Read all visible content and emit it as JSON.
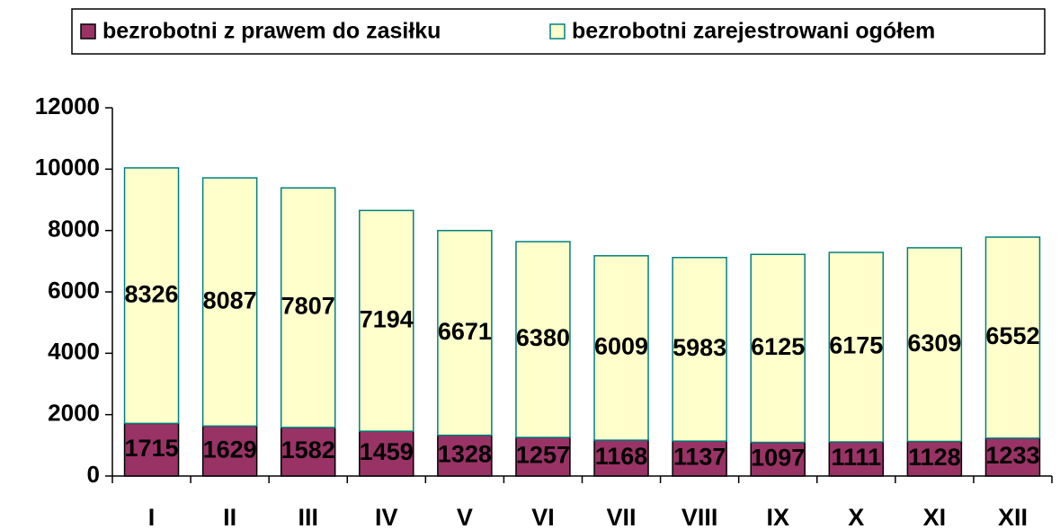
{
  "chart_data": {
    "type": "stacked_bar",
    "categories": [
      "I",
      "II",
      "III",
      "IV",
      "V",
      "VI",
      "VII",
      "VIII",
      "IX",
      "X",
      "XI",
      "XII"
    ],
    "series": [
      {
        "name": "bezrobotni z prawem do zasiłku",
        "color": "#993366",
        "values": [
          1715,
          1629,
          1582,
          1459,
          1328,
          1257,
          1168,
          1137,
          1097,
          1111,
          1128,
          1233
        ]
      },
      {
        "name": "bezrobotni zarejestrowani ogółem",
        "color": "#FFFFCC",
        "values": [
          8326,
          8087,
          7807,
          7194,
          6671,
          6380,
          6009,
          5983,
          6125,
          6175,
          6309,
          6552
        ]
      }
    ],
    "ylim": [
      0,
      12000
    ],
    "yticks": [
      0,
      2000,
      4000,
      6000,
      8000,
      10000,
      12000
    ],
    "legend": "top"
  }
}
